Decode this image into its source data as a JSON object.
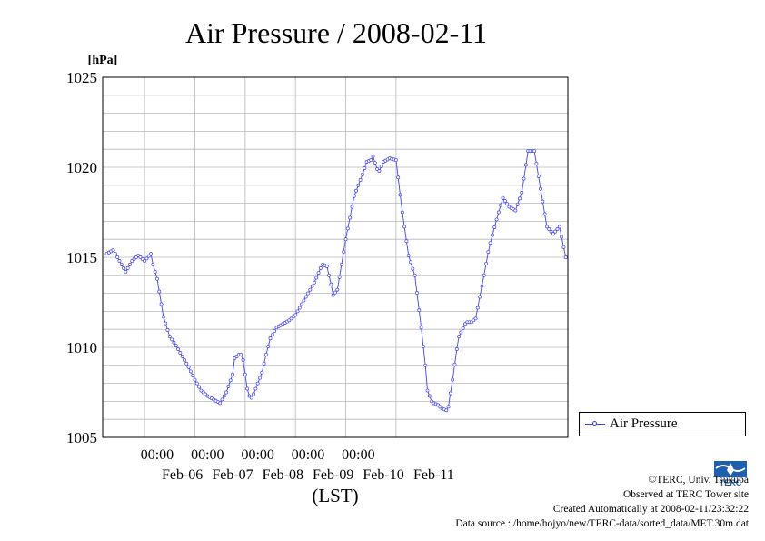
{
  "chart_data": {
    "type": "line",
    "title": "Air Pressure / 2008-02-11",
    "ylabel": "[hPa]",
    "xlabel": "(LST)",
    "ylim": [
      1005,
      1025
    ],
    "yticks": [
      "1005",
      "1010",
      "1015",
      "1020",
      "1025"
    ],
    "xtick_time_label": "00:00",
    "xtick_dates": [
      "Feb-06",
      "Feb-07",
      "Feb-08",
      "Feb-09",
      "Feb-10",
      "Feb-11"
    ],
    "grid": true,
    "legend_position": "right",
    "series": [
      {
        "name": "Air Pressure",
        "color": "#4040ff",
        "x_hours_from_feb05_0000": [
          0,
          3,
          6,
          9,
          12,
          15,
          18,
          21,
          22,
          24,
          27,
          30,
          33,
          36,
          39,
          42,
          45,
          48,
          51,
          54,
          57,
          60,
          61,
          63,
          64,
          65,
          66,
          67,
          68,
          69,
          70,
          72,
          74,
          75,
          76,
          78,
          81,
          84,
          87,
          90,
          93,
          96,
          99,
          102,
          103,
          105,
          107,
          108,
          110,
          114,
          118,
          120,
          122,
          124,
          126,
          127,
          129,
          130,
          132,
          135,
          138,
          141,
          144,
          147,
          150,
          152,
          153,
          155,
          156,
          158,
          160,
          162,
          163,
          165,
          167,
          168,
          171,
          172,
          174,
          176,
          177,
          180,
          182,
          183,
          186,
          189,
          192,
          195,
          198,
          201,
          204,
          207,
          210,
          213,
          216,
          219
        ],
        "values": [
          1015.2,
          1015.4,
          1014.8,
          1014.2,
          1014.8,
          1015.1,
          1014.8,
          1015.2,
          1014.6,
          1013.8,
          1011.7,
          1010.6,
          1010.1,
          1009.5,
          1008.9,
          1008.2,
          1007.6,
          1007.3,
          1007.1,
          1006.9,
          1007.5,
          1008.5,
          1009.4,
          1009.6,
          1009.6,
          1009.3,
          1008.5,
          1007.7,
          1007.3,
          1007.2,
          1007.4,
          1008.0,
          1008.6,
          1009.1,
          1009.6,
          1010.5,
          1011.1,
          1011.3,
          1011.5,
          1011.8,
          1012.4,
          1013.0,
          1013.6,
          1014.4,
          1014.6,
          1014.5,
          1013.5,
          1012.9,
          1013.2,
          1016.0,
          1018.4,
          1019.0,
          1019.6,
          1020.3,
          1020.4,
          1020.6,
          1019.9,
          1019.8,
          1020.3,
          1020.5,
          1020.4,
          1017.5,
          1015.1,
          1014.0,
          1011.1,
          1009.0,
          1007.6,
          1007.0,
          1006.9,
          1006.8,
          1006.6,
          1006.5,
          1006.7,
          1008.2,
          1009.9,
          1010.6,
          1011.3,
          1011.4,
          1011.4,
          1011.6,
          1012.2,
          1014.0,
          1015.3,
          1015.8,
          1017.1,
          1018.3,
          1017.8,
          1017.6,
          1018.6,
          1020.9,
          1020.9,
          1018.8,
          1016.7,
          1016.3,
          1016.7,
          1015.0
        ]
      }
    ]
  },
  "credits": {
    "copyright": "©TERC, Univ. Tsukuba",
    "observed": "Observed at TERC Tower site",
    "created": "Created Automatically at 2008-02-11/23:32:22",
    "source": "Data source : /home/hojyo/new/TERC-data/sorted_data/MET.30m.dat"
  },
  "logo": {
    "text": "TERC"
  }
}
